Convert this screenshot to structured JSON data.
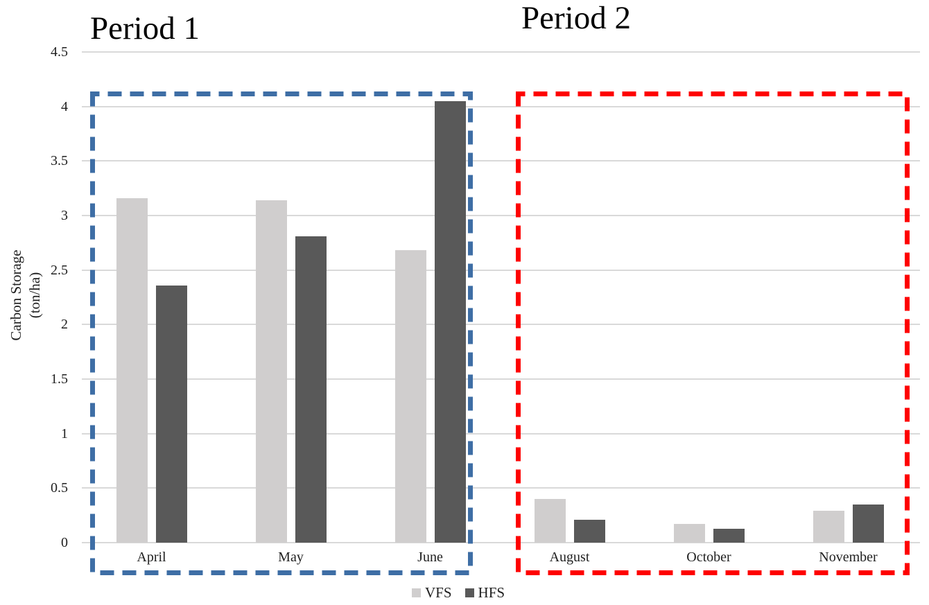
{
  "chart_data": {
    "type": "bar",
    "title_left": "Period 1",
    "title_right": "Period 2",
    "ylabel_line1": "Carbon Storage",
    "ylabel_line2": "(ton/ha)",
    "categories": [
      "April",
      "May",
      "June",
      "August",
      "October",
      "November"
    ],
    "series": [
      {
        "name": "VFS",
        "color": "#d0cece",
        "values": [
          3.16,
          3.14,
          2.68,
          0.4,
          0.17,
          0.29
        ]
      },
      {
        "name": "HFS",
        "color": "#595959",
        "values": [
          2.36,
          2.81,
          4.05,
          0.21,
          0.13,
          0.35
        ]
      }
    ],
    "ylim": [
      0,
      4.5
    ],
    "ytick_step": 0.5,
    "grid": true,
    "gridline_color": "#d9d9d9",
    "legend_position": "bottom",
    "periods": [
      {
        "label": "Period 1",
        "categories": [
          "April",
          "May",
          "June"
        ],
        "box_color": "#3e6ea5",
        "box_style": "dashed"
      },
      {
        "label": "Period 2",
        "categories": [
          "August",
          "October",
          "November"
        ],
        "box_color": "#fe0000",
        "box_style": "dashed"
      }
    ]
  }
}
